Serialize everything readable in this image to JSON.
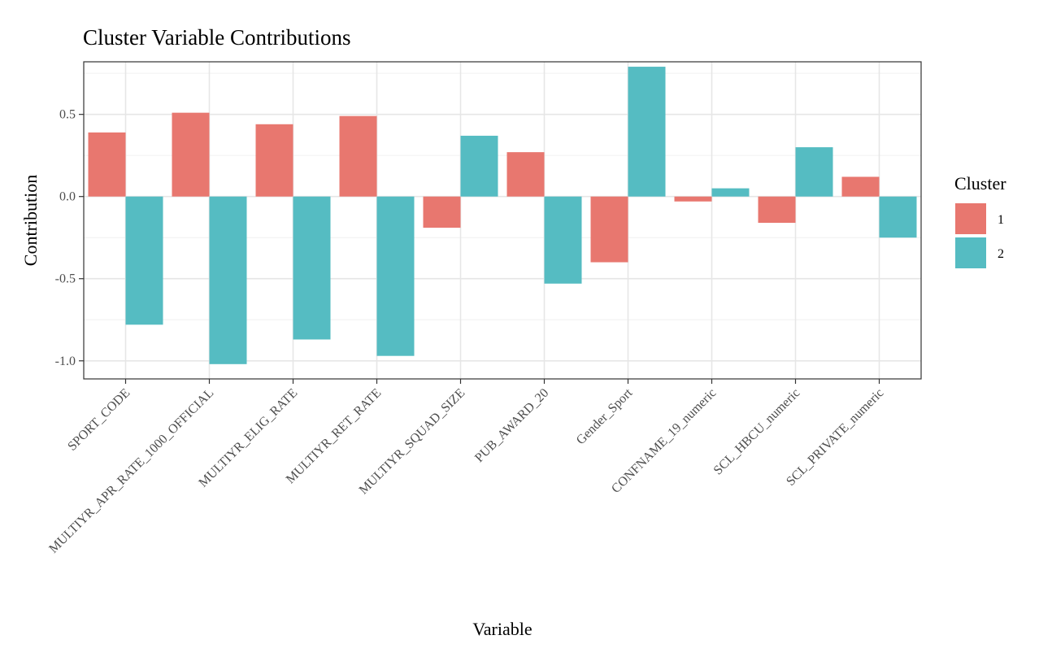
{
  "chart_data": {
    "type": "bar",
    "title": "Cluster Variable Contributions",
    "xlabel": "Variable",
    "ylabel": "Contribution",
    "categories": [
      "SPORT_CODE",
      "MULTIYR_APR_RATE_1000_OFFICIAL",
      "MULTIYR_ELIG_RATE",
      "MULTIYR_RET_RATE",
      "MULTIYR_SQUAD_SIZE",
      "PUB_AWARD_20",
      "Gender_Sport",
      "CONFNAME_19_numeric",
      "SCL_HBCU_numeric",
      "SCL_PRIVATE_numeric"
    ],
    "series": [
      {
        "name": "1",
        "color": "#E8776F",
        "values": [
          0.39,
          0.51,
          0.44,
          0.49,
          -0.19,
          0.27,
          -0.4,
          -0.03,
          -0.16,
          0.12
        ]
      },
      {
        "name": "2",
        "color": "#55BCC2",
        "values": [
          -0.78,
          -1.02,
          -0.87,
          -0.97,
          0.37,
          -0.53,
          0.79,
          0.05,
          0.3,
          -0.25
        ]
      }
    ],
    "ylim": [
      -1.11,
      0.82
    ],
    "yticks": [
      -1.0,
      -0.5,
      0.0,
      0.5
    ],
    "ytick_labels": [
      "-1.0",
      "-0.5",
      "0.0",
      "0.5"
    ],
    "grid": true,
    "legend": {
      "title": "Cluster",
      "position": "right"
    }
  }
}
